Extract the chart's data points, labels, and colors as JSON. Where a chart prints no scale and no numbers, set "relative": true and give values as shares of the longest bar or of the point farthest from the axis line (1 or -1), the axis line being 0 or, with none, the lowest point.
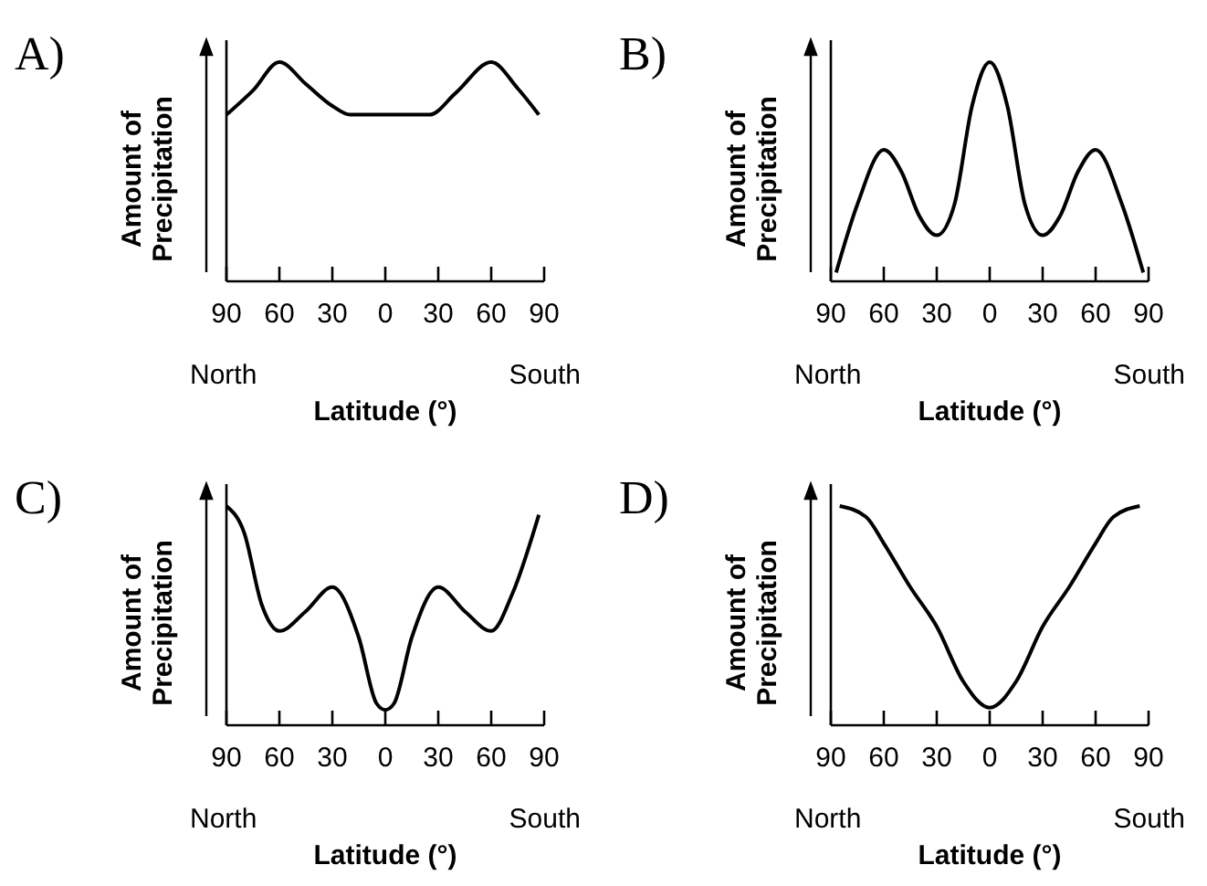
{
  "chart_data": [
    {
      "type": "line",
      "title": "A)",
      "xlabel": "Latitude (°)",
      "ylabel": "Amount of Precipitation",
      "relative": true,
      "xlim": [
        -90,
        90
      ],
      "xticks": [
        {
          "value": -90,
          "label": "90"
        },
        {
          "value": -60,
          "label": "60"
        },
        {
          "value": -30,
          "label": "30"
        },
        0,
        30,
        60,
        90
      ],
      "annotations": [
        "North",
        "South"
      ],
      "series": [
        {
          "color": "#000000",
          "x": [
            -90,
            -75,
            -60,
            -45,
            -30,
            -20,
            0,
            25,
            40,
            60,
            75,
            87
          ],
          "values": [
            0.76,
            0.87,
            1,
            0.9,
            0.8,
            0.76,
            0.76,
            0.76,
            0.86,
            1,
            0.88,
            0.76
          ]
        }
      ]
    },
    {
      "type": "line",
      "title": "B)",
      "xlabel": "Latitude (°)",
      "ylabel": "Amount of Precipitation",
      "relative": true,
      "xlim": [
        -90,
        90
      ],
      "xticks": [
        {
          "value": -90,
          "label": "90"
        },
        {
          "value": -60,
          "label": "60"
        },
        {
          "value": -30,
          "label": "30"
        },
        0,
        30,
        60,
        90
      ],
      "annotations": [
        "North",
        "South"
      ],
      "series": [
        {
          "color": "#000000",
          "x": [
            -87,
            -75,
            -60,
            -50,
            -40,
            -30,
            -20,
            -10,
            0,
            10,
            20,
            30,
            40,
            50,
            60,
            75,
            87
          ],
          "values": [
            0.04,
            0.35,
            0.6,
            0.5,
            0.3,
            0.21,
            0.35,
            0.8,
            1,
            0.8,
            0.35,
            0.21,
            0.3,
            0.5,
            0.6,
            0.35,
            0.04
          ]
        }
      ]
    },
    {
      "type": "line",
      "title": "C)",
      "xlabel": "Latitude (°)",
      "ylabel": "Amount of Precipitation",
      "relative": true,
      "xlim": [
        -90,
        90
      ],
      "xticks": [
        {
          "value": -90,
          "label": "90"
        },
        {
          "value": -60,
          "label": "60"
        },
        {
          "value": -30,
          "label": "30"
        },
        0,
        30,
        60,
        90
      ],
      "annotations": [
        "North",
        "South"
      ],
      "series": [
        {
          "color": "#000000",
          "x": [
            -90,
            -80,
            -70,
            -60,
            -45,
            -30,
            -15,
            -5,
            0,
            5,
            15,
            30,
            45,
            60,
            72,
            87
          ],
          "values": [
            1,
            0.88,
            0.55,
            0.43,
            0.52,
            0.63,
            0.4,
            0.1,
            0.07,
            0.1,
            0.4,
            0.63,
            0.52,
            0.43,
            0.6,
            0.96
          ]
        }
      ]
    },
    {
      "type": "line",
      "title": "D)",
      "xlabel": "Latitude (°)",
      "ylabel": "Amount of Precipitation",
      "relative": true,
      "xlim": [
        -90,
        90
      ],
      "xticks": [
        {
          "value": -90,
          "label": "90"
        },
        {
          "value": -60,
          "label": "60"
        },
        {
          "value": -30,
          "label": "30"
        },
        0,
        30,
        60,
        90
      ],
      "annotations": [
        "North",
        "South"
      ],
      "series": [
        {
          "color": "#000000",
          "x": [
            -85,
            -70,
            -60,
            -45,
            -30,
            -15,
            0,
            15,
            30,
            45,
            60,
            70,
            85
          ],
          "values": [
            1,
            0.95,
            0.83,
            0.63,
            0.45,
            0.2,
            0.08,
            0.2,
            0.45,
            0.63,
            0.83,
            0.95,
            1
          ]
        }
      ]
    }
  ]
}
